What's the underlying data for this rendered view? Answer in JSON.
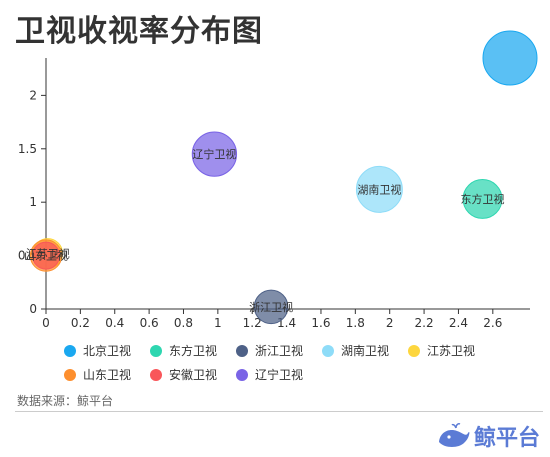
{
  "title": "卫视收视率分布图",
  "source": "数据来源：鲸平台",
  "brand": "鲸平台",
  "chart_data": {
    "type": "scatter",
    "xlim": [
      0,
      2.7
    ],
    "ylim": [
      0,
      2.35
    ],
    "x_ticks": [
      "0",
      "0.2",
      "0.4",
      "0.6",
      "0.8",
      "1",
      "1.2",
      "1.4",
      "1.6",
      "1.8",
      "2",
      "2.2",
      "2.4",
      "2.6"
    ],
    "y_ticks": [
      "0",
      "0.5",
      "1",
      "1.5",
      "2"
    ],
    "legend_position": "bottom",
    "grid": false,
    "series": [
      {
        "name": "北京卫视",
        "color": "#1aa8f0",
        "x": 2.7,
        "y": 2.35,
        "size": 1.0
      },
      {
        "name": "东方卫视",
        "color": "#2ed6b0",
        "x": 2.54,
        "y": 1.03,
        "size": 0.72
      },
      {
        "name": "浙江卫视",
        "color": "#4e6187",
        "x": 1.31,
        "y": 0.02,
        "size": 0.62
      },
      {
        "name": "湖南卫视",
        "color": "#8edcf8",
        "x": 1.94,
        "y": 1.12,
        "size": 0.85
      },
      {
        "name": "江苏卫视",
        "color": "#fdd63e",
        "x": 0.01,
        "y": 0.52,
        "size": 0.55
      },
      {
        "name": "山东卫视",
        "color": "#fd8f2e",
        "x": 0.0,
        "y": 0.5,
        "size": 0.58
      },
      {
        "name": "安徽卫视",
        "color": "#f9565a",
        "x": 0.0,
        "y": 0.5,
        "size": 0.5
      },
      {
        "name": "辽宁卫视",
        "color": "#7a64e6",
        "x": 0.98,
        "y": 1.45,
        "size": 0.82
      }
    ]
  }
}
